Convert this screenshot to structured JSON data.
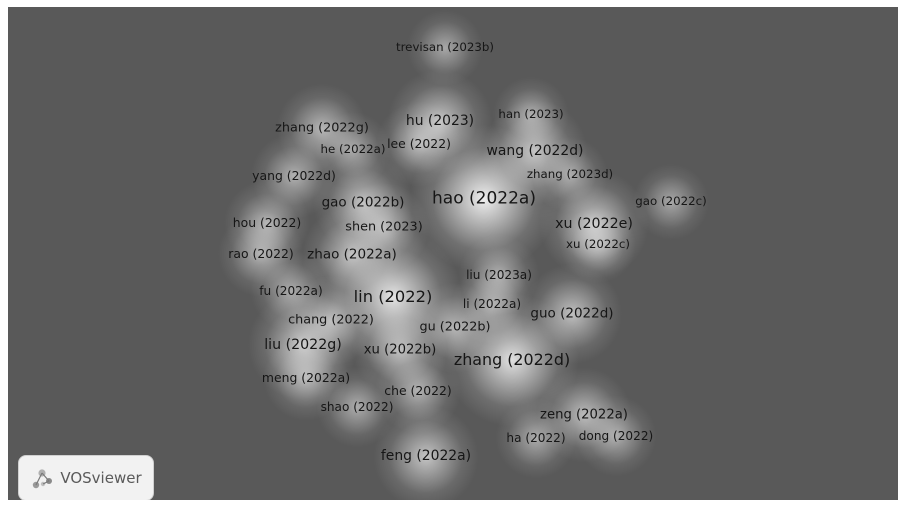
{
  "app": {
    "logo_text": "VOSviewer"
  },
  "colors": {
    "background": "#595959",
    "label": "#161616",
    "glow": "#ffffff"
  },
  "density_map": {
    "type": "density-visualization",
    "items": [
      {
        "label": "trevisan (2023b)",
        "weight": 0.25
      },
      {
        "label": "han (2023)",
        "weight": 0.25
      },
      {
        "label": "hu (2023)",
        "weight": 0.55
      },
      {
        "label": "zhang (2022g)",
        "weight": 0.4
      },
      {
        "label": "he (2022a)",
        "weight": 0.25
      },
      {
        "label": "lee (2022)",
        "weight": 0.35
      },
      {
        "label": "wang (2022d)",
        "weight": 0.55
      },
      {
        "label": "zhang (2023d)",
        "weight": 0.25
      },
      {
        "label": "yang (2022d)",
        "weight": 0.35
      },
      {
        "label": "gao (2022b)",
        "weight": 0.5
      },
      {
        "label": "hao (2022a)",
        "weight": 1.0
      },
      {
        "label": "gao (2022c)",
        "weight": 0.25
      },
      {
        "label": "hou (2022)",
        "weight": 0.35
      },
      {
        "label": "shen (2023)",
        "weight": 0.4
      },
      {
        "label": "xu (2022e)",
        "weight": 0.6
      },
      {
        "label": "xu (2022c)",
        "weight": 0.25
      },
      {
        "label": "rao (2022)",
        "weight": 0.35
      },
      {
        "label": "zhao (2022a)",
        "weight": 0.5
      },
      {
        "label": "liu (2023a)",
        "weight": 0.3
      },
      {
        "label": "fu (2022a)",
        "weight": 0.3
      },
      {
        "label": "lin (2022)",
        "weight": 0.9
      },
      {
        "label": "li (2022a)",
        "weight": 0.3
      },
      {
        "label": "guo (2022d)",
        "weight": 0.5
      },
      {
        "label": "chang (2022)",
        "weight": 0.4
      },
      {
        "label": "gu (2022b)",
        "weight": 0.4
      },
      {
        "label": "liu (2022g)",
        "weight": 0.6
      },
      {
        "label": "xu (2022b)",
        "weight": 0.45
      },
      {
        "label": "zhang (2022d)",
        "weight": 0.85
      },
      {
        "label": "meng (2022a)",
        "weight": 0.35
      },
      {
        "label": "che (2022)",
        "weight": 0.35
      },
      {
        "label": "shao (2022)",
        "weight": 0.3
      },
      {
        "label": "zeng (2022a)",
        "weight": 0.45
      },
      {
        "label": "ha (2022)",
        "weight": 0.3
      },
      {
        "label": "dong (2022)",
        "weight": 0.3
      },
      {
        "label": "feng (2022a)",
        "weight": 0.55
      }
    ]
  }
}
